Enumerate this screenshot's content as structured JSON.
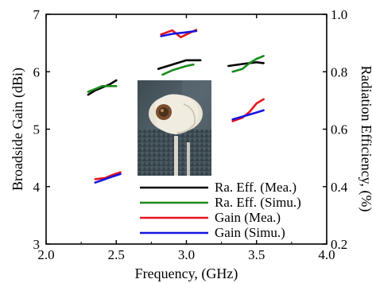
{
  "chart_data": {
    "type": "line",
    "x_axis": {
      "label": "Frequency, (GHz)",
      "ticks": [
        "2.0",
        "2.5",
        "3.0",
        "3.5",
        "4.0"
      ],
      "range": [
        2.0,
        4.0
      ]
    },
    "y_left": {
      "label": "Broadside Gain (dBi)",
      "ticks": [
        "3",
        "4",
        "5",
        "6",
        "7"
      ],
      "range": [
        3,
        7
      ]
    },
    "y_right": {
      "label": "Radiation Efficiency, (%)",
      "ticks": [
        "0.2",
        "0.4",
        "0.6",
        "0.8",
        "1.0"
      ],
      "range": [
        0.2,
        1.0
      ]
    },
    "legend": {
      "placement": "lower-right",
      "entries": [
        {
          "label": "Ra. Eff. (Mea.)",
          "color": "#000000"
        },
        {
          "label": "Ra. Eff. (Simu.)",
          "color": "#1a8a1a"
        },
        {
          "label": "Gain (Mea.)",
          "color": "#e8141b"
        },
        {
          "label": "Gain (Simu.)",
          "color": "#1515e0"
        }
      ]
    },
    "series": [
      {
        "name": "Ra. Eff. (Mea.)",
        "axis": "right",
        "color": "#000000",
        "segments": [
          [
            [
              2.3,
              0.72
            ],
            [
              2.35,
              0.735
            ],
            [
              2.4,
              0.745
            ],
            [
              2.45,
              0.755
            ],
            [
              2.5,
              0.77
            ]
          ],
          [
            [
              2.8,
              0.81
            ],
            [
              2.9,
              0.825
            ],
            [
              3.0,
              0.84
            ],
            [
              3.1,
              0.84
            ]
          ],
          [
            [
              3.3,
              0.82
            ],
            [
              3.4,
              0.827
            ],
            [
              3.5,
              0.833
            ],
            [
              3.55,
              0.83
            ]
          ]
        ]
      },
      {
        "name": "Ra. Eff. (Simu.)",
        "axis": "right",
        "color": "#1a8a1a",
        "segments": [
          [
            [
              2.3,
              0.73
            ],
            [
              2.35,
              0.74
            ],
            [
              2.4,
              0.75
            ],
            [
              2.45,
              0.75
            ],
            [
              2.5,
              0.75
            ]
          ],
          [
            [
              2.83,
              0.79
            ],
            [
              2.9,
              0.805
            ],
            [
              3.0,
              0.82
            ],
            [
              3.05,
              0.825
            ]
          ],
          [
            [
              3.33,
              0.8
            ],
            [
              3.4,
              0.81
            ],
            [
              3.45,
              0.83
            ],
            [
              3.5,
              0.845
            ],
            [
              3.55,
              0.855
            ]
          ]
        ]
      },
      {
        "name": "Gain (Mea.)",
        "axis": "left",
        "color": "#e8141b",
        "segments": [
          [
            [
              2.35,
              4.13
            ],
            [
              2.42,
              4.15
            ],
            [
              2.48,
              4.21
            ],
            [
              2.53,
              4.25
            ]
          ],
          [
            [
              2.82,
              6.65
            ],
            [
              2.9,
              6.72
            ],
            [
              2.96,
              6.6
            ],
            [
              3.0,
              6.65
            ],
            [
              3.07,
              6.73
            ]
          ],
          [
            [
              3.33,
              5.14
            ],
            [
              3.4,
              5.2
            ],
            [
              3.45,
              5.3
            ],
            [
              3.5,
              5.45
            ],
            [
              3.55,
              5.52
            ]
          ]
        ]
      },
      {
        "name": "Gain (Simu.)",
        "axis": "left",
        "color": "#1515e0",
        "segments": [
          [
            [
              2.35,
              4.07
            ],
            [
              2.42,
              4.13
            ],
            [
              2.48,
              4.18
            ],
            [
              2.53,
              4.22
            ]
          ],
          [
            [
              2.82,
              6.62
            ],
            [
              2.9,
              6.66
            ],
            [
              2.98,
              6.68
            ],
            [
              3.07,
              6.71
            ]
          ],
          [
            [
              3.33,
              5.17
            ],
            [
              3.4,
              5.22
            ],
            [
              3.5,
              5.29
            ],
            [
              3.55,
              5.33
            ]
          ]
        ]
      }
    ]
  }
}
